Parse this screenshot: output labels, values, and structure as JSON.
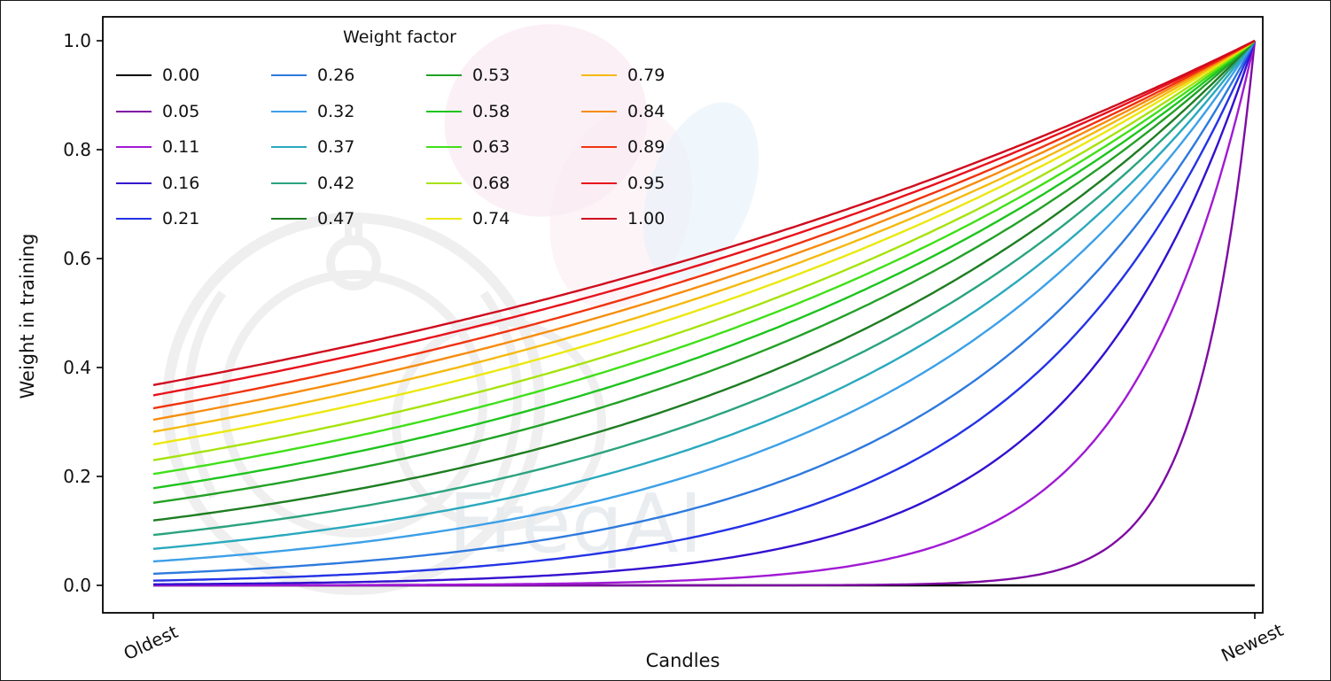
{
  "figure": {
    "watermark_text": "FreqAI"
  },
  "chart_data": {
    "type": "line",
    "title": "",
    "xlabel": "Candles",
    "ylabel": "Weight in training",
    "x_tick_labels": [
      "Oldest",
      "Newest"
    ],
    "y_ticks": [
      0.0,
      0.2,
      0.4,
      0.6,
      0.8,
      1.0
    ],
    "ylim": [
      0.0,
      1.05
    ],
    "grid": false,
    "legend": {
      "title": "Weight factor",
      "position": "upper-left",
      "columns": 4,
      "order": "column-major",
      "frame": false
    },
    "curve_formula": "y = exp(-(1 - x) / factor) for x in [0,1] (Oldest to Newest); y = 0 for factor = 0; all curves converge to 1.0 at Newest",
    "series": [
      {
        "label": "0.00",
        "factor": 0.0,
        "color": "#000000"
      },
      {
        "label": "0.05",
        "factor": 0.05,
        "color": "#7f0ba3"
      },
      {
        "label": "0.11",
        "factor": 0.11,
        "color": "#a11ad4"
      },
      {
        "label": "0.16",
        "factor": 0.16,
        "color": "#3410cf"
      },
      {
        "label": "0.21",
        "factor": 0.21,
        "color": "#2433e6"
      },
      {
        "label": "0.26",
        "factor": 0.26,
        "color": "#2e7ade"
      },
      {
        "label": "0.32",
        "factor": 0.32,
        "color": "#3da0e8"
      },
      {
        "label": "0.37",
        "factor": 0.37,
        "color": "#2aa9bd"
      },
      {
        "label": "0.42",
        "factor": 0.42,
        "color": "#2aa37e"
      },
      {
        "label": "0.47",
        "factor": 0.47,
        "color": "#1e7d22"
      },
      {
        "label": "0.53",
        "factor": 0.53,
        "color": "#23a126"
      },
      {
        "label": "0.58",
        "factor": 0.58,
        "color": "#1ec41e"
      },
      {
        "label": "0.63",
        "factor": 0.63,
        "color": "#40e019"
      },
      {
        "label": "0.68",
        "factor": 0.68,
        "color": "#a6e30e"
      },
      {
        "label": "0.74",
        "factor": 0.74,
        "color": "#ece80e"
      },
      {
        "label": "0.79",
        "factor": 0.79,
        "color": "#f5ba10"
      },
      {
        "label": "0.84",
        "factor": 0.84,
        "color": "#f78c0e"
      },
      {
        "label": "0.89",
        "factor": 0.89,
        "color": "#f0330f"
      },
      {
        "label": "0.95",
        "factor": 0.95,
        "color": "#e8111c"
      },
      {
        "label": "1.00",
        "factor": 1.0,
        "color": "#cf0c1e"
      }
    ]
  }
}
